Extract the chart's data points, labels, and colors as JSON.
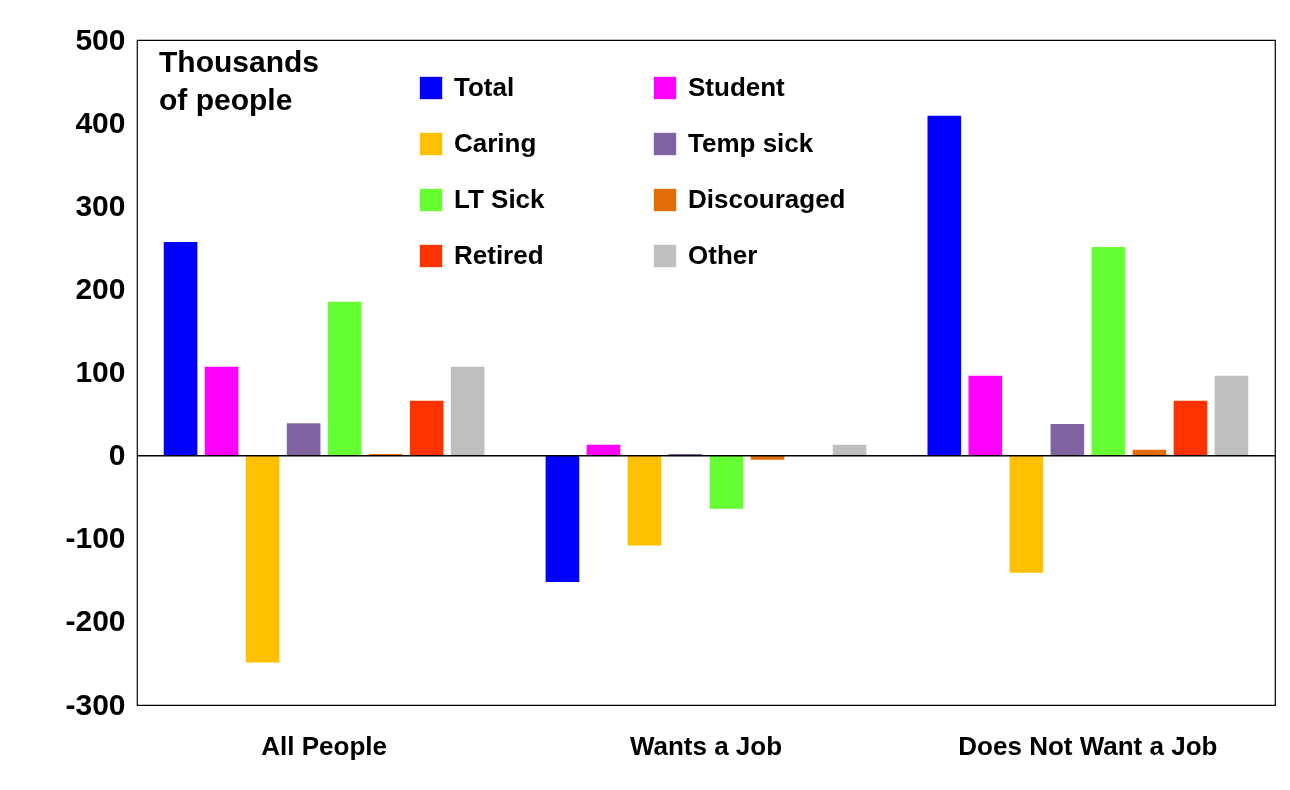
{
  "chart_data": {
    "type": "bar",
    "ylabel": "Thousands of people",
    "categories": [
      "All People",
      "Wants a Job",
      "Does Not Want a Job"
    ],
    "series": [
      {
        "name": "Total",
        "color": "#0000ff",
        "values": [
          257,
          -152,
          409
        ]
      },
      {
        "name": "Student",
        "color": "#ff00ff",
        "values": [
          107,
          13,
          96
        ]
      },
      {
        "name": "Caring",
        "color": "#ffc000",
        "values": [
          -249,
          -108,
          -141
        ]
      },
      {
        "name": "Temp sick",
        "color": "#8064a2",
        "values": [
          39,
          2,
          38
        ]
      },
      {
        "name": "LT Sick",
        "color": "#66ff33",
        "values": [
          185,
          -64,
          251
        ]
      },
      {
        "name": "Discouraged",
        "color": "#e36c09",
        "values": [
          2,
          -5,
          7
        ]
      },
      {
        "name": "Retired",
        "color": "#ff3300",
        "values": [
          66,
          0,
          66
        ]
      },
      {
        "name": "Other",
        "color": "#bfbfbf",
        "values": [
          107,
          13,
          96
        ]
      }
    ],
    "ylim": [
      -300,
      500
    ],
    "yticks": [
      -300,
      -200,
      -100,
      0,
      100,
      200,
      300,
      400,
      500
    ],
    "ref_lines": [
      {
        "axis": "y",
        "value": 0,
        "color": "#000000"
      }
    ],
    "grid": false,
    "legend": "top"
  }
}
